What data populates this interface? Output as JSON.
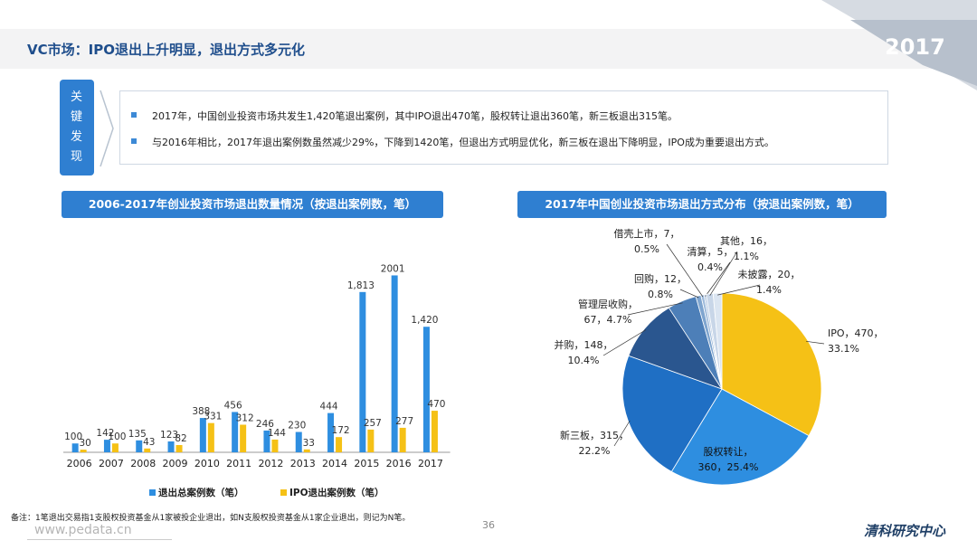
{
  "header": {
    "title": "VC市场：IPO退出上升明显，退出方式多元化",
    "year_badge": "2017"
  },
  "key_findings": {
    "label_chars": [
      "关",
      "键",
      "发",
      "现"
    ],
    "bullets": [
      "2017年，中国创业投资市场共发生1,420笔退出案例，其中IPO退出470笔，股权转让退出360笔，新三板退出315笔。",
      "与2016年相比，2017年退出案例数虽然减少29%，下降到1420笔，但退出方式明显优化，新三板在退出下降明显，IPO成为重要退出方式。"
    ]
  },
  "left_chart_title": "2006-2017年创业投资市场退出数量情况（按退出案例数，笔）",
  "right_chart_title": "2017年中国创业投资市场退出方式分布（按退出案例数，笔）",
  "legend": {
    "total": "退出总案例数（笔）",
    "ipo": "IPO退出案例数（笔）"
  },
  "colors": {
    "total": "#2e8ee0",
    "ipo": "#f5c116",
    "accent": "#2f7fd1",
    "title": "#1f4e8c"
  },
  "chart_data": [
    {
      "type": "bar",
      "categories": [
        "2006",
        "2007",
        "2008",
        "2009",
        "2010",
        "2011",
        "2012",
        "2013",
        "2014",
        "2015",
        "2016",
        "2017"
      ],
      "series": [
        {
          "name": "退出总案例数（笔）",
          "values": [
            100,
            142,
            135,
            123,
            388,
            456,
            246,
            230,
            444,
            1813,
            2001,
            1420
          ],
          "labels": [
            "100",
            "142",
            "135",
            "123",
            "388",
            "456",
            "246",
            "230",
            "444",
            "1,813",
            "2001",
            "1,420"
          ]
        },
        {
          "name": "IPO退出案例数（笔）",
          "values": [
            30,
            100,
            43,
            82,
            331,
            312,
            144,
            33,
            172,
            257,
            277,
            470
          ],
          "labels": [
            "30",
            "100",
            "43",
            "82",
            "331",
            "312",
            "144",
            "33",
            "172",
            "257",
            "277",
            "470"
          ]
        }
      ],
      "ylim": [
        0,
        2200
      ],
      "grid": false
    },
    {
      "type": "pie",
      "slices": [
        {
          "label": "IPO",
          "value": 470,
          "pct": "33.1%",
          "color": "#f5c116",
          "text": [
            "IPO，470，",
            "33.1%"
          ]
        },
        {
          "label": "股权转让",
          "value": 360,
          "pct": "25.4%",
          "color": "#2e8ee0",
          "text": [
            "股权转让，",
            "360，25.4%"
          ]
        },
        {
          "label": "新三板",
          "value": 315,
          "pct": "22.2%",
          "color": "#1f6fc4",
          "text": [
            "新三板，315，",
            "22.2%"
          ]
        },
        {
          "label": "并购",
          "value": 148,
          "pct": "10.4%",
          "color": "#2a568f",
          "text": [
            "并购，148，",
            "10.4%"
          ]
        },
        {
          "label": "管理层收购",
          "value": 67,
          "pct": "4.7%",
          "color": "#4d7fb8",
          "text": [
            "管理层收购，",
            "67，4.7%"
          ]
        },
        {
          "label": "回购",
          "value": 12,
          "pct": "0.8%",
          "color": "#7fa5cf",
          "text": [
            "回购，12，",
            "0.8%"
          ]
        },
        {
          "label": "借壳上市",
          "value": 7,
          "pct": "0.5%",
          "color": "#9fbbdb",
          "text": [
            "借壳上市，7，",
            "0.5%"
          ]
        },
        {
          "label": "清算",
          "value": 5,
          "pct": "0.4%",
          "color": "#b9cce4",
          "text": [
            "清算，5，",
            "0.4%"
          ]
        },
        {
          "label": "其他",
          "value": 16,
          "pct": "1.1%",
          "color": "#c8d6e8",
          "text": [
            "其他，16，",
            "1.1%"
          ]
        },
        {
          "label": "未披露",
          "value": 20,
          "pct": "1.4%",
          "color": "#dbe5f1",
          "text": [
            "未披露，20，",
            "1.4%"
          ]
        }
      ]
    }
  ],
  "note": "备注：1笔退出交易指1支股权投资基金从1家被投企业退出，如N支股权投资基金从1家企业退出，则记为N笔。",
  "page_number": "36",
  "footer": {
    "site": "www.pedata.cn",
    "brand": "清科研究中心"
  }
}
